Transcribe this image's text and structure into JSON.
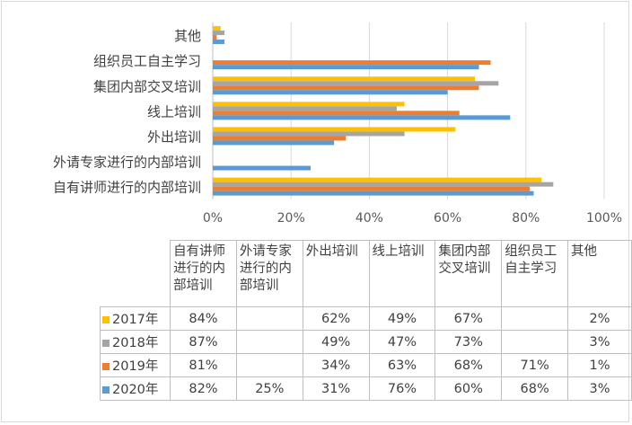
{
  "chart_data": {
    "type": "bar",
    "orientation": "horizontal",
    "categories": [
      "自有讲师进行的内部培训",
      "外请专家进行的内部培训",
      "外出培训",
      "线上培训",
      "集团内部交叉培训",
      "组织员工自主学习",
      "其他"
    ],
    "table_headers": [
      [
        "自有讲师",
        "进行的内",
        "部培训"
      ],
      [
        "外请专家",
        "进行的内",
        "部培训"
      ],
      [
        "外出培训"
      ],
      [
        "线上培训"
      ],
      [
        "集团内部",
        "交叉培训"
      ],
      [
        "组织员工",
        "自主学习"
      ],
      [
        "其他"
      ]
    ],
    "x_ticks": [
      "0%",
      "20%",
      "40%",
      "60%",
      "80%",
      "100%"
    ],
    "xlim": [
      0,
      100
    ],
    "grid": true,
    "legend": "data-table",
    "series": [
      {
        "name": "2017年",
        "color": "#FFC000",
        "values": [
          84,
          null,
          62,
          49,
          67,
          null,
          2
        ],
        "labels": [
          "84%",
          "",
          "62%",
          "49%",
          "67%",
          "",
          "2%"
        ]
      },
      {
        "name": "2018年",
        "color": "#A5A5A5",
        "values": [
          87,
          null,
          49,
          47,
          73,
          null,
          3
        ],
        "labels": [
          "87%",
          "",
          "49%",
          "47%",
          "73%",
          "",
          "3%"
        ]
      },
      {
        "name": "2019年",
        "color": "#ED7D31",
        "values": [
          81,
          null,
          34,
          63,
          68,
          71,
          1
        ],
        "labels": [
          "81%",
          "",
          "34%",
          "63%",
          "68%",
          "71%",
          "1%"
        ]
      },
      {
        "name": "2020年",
        "color": "#5B9BD5",
        "values": [
          82,
          25,
          31,
          76,
          60,
          68,
          3
        ],
        "labels": [
          "82%",
          "25%",
          "31%",
          "76%",
          "60%",
          "68%",
          "3%"
        ]
      }
    ]
  }
}
